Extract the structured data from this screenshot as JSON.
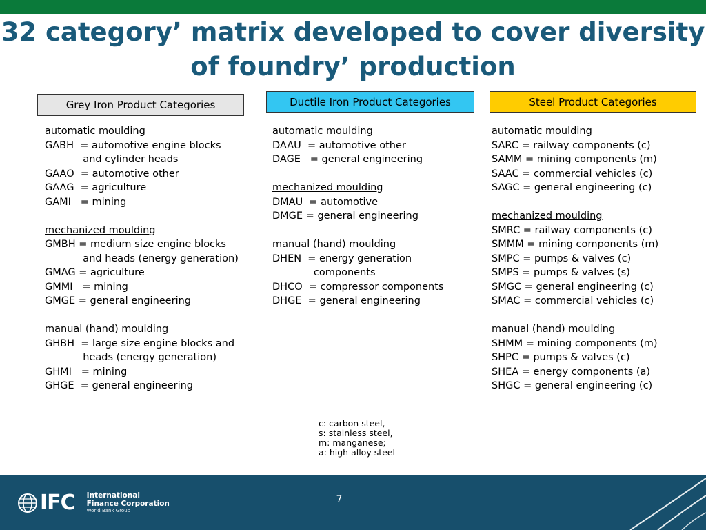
{
  "title_line1": "32 category’ matrix developed to cover diversity",
  "title_line2": "of foundry’ production",
  "categories": {
    "grey": {
      "label": "Grey Iron Product Categories",
      "sections": [
        {
          "heading": "automatic moulding",
          "lines": [
            "GABH  = automotive engine blocks",
            "            and cylinder heads",
            "GAAO  = automotive other",
            "GAAG  = agriculture",
            "GAMI   = mining"
          ]
        },
        {
          "heading": "mechanized moulding",
          "lines": [
            "GMBH = medium size engine blocks",
            "            and heads (energy generation)",
            "GMAG = agriculture",
            "GMMI   = mining",
            "GMGE = general engineering"
          ]
        },
        {
          "heading": "manual (hand) moulding",
          "lines": [
            "GHBH  = large size engine blocks and",
            "            heads (energy generation)",
            "GHMI   = mining",
            "GHGE  = general engineering"
          ]
        }
      ]
    },
    "ductile": {
      "label": "Ductile Iron Product Categories",
      "sections": [
        {
          "heading": "automatic moulding",
          "lines": [
            "DAAU  = automotive other",
            "DAGE   = general engineering"
          ]
        },
        {
          "heading": "mechanized moulding",
          "lines": [
            "DMAU  = automotive",
            "DMGE = general engineering"
          ]
        },
        {
          "heading": "manual (hand) moulding",
          "lines": [
            "DHEN  = energy generation",
            "             components",
            "DHCO  = compressor components",
            "DHGE  = general engineering"
          ]
        }
      ]
    },
    "steel": {
      "label": "Steel Product Categories",
      "sections": [
        {
          "heading": "automatic moulding",
          "lines": [
            "SARC = railway components (c)",
            "SAMM = mining components (m)",
            "SAAC = commercial vehicles (c)",
            "SAGC = general engineering (c)"
          ]
        },
        {
          "heading": "mechanized moulding",
          "lines": [
            "SMRC = railway components (c)",
            "SMMM = mining components (m)",
            "SMPC = pumps & valves (c)",
            "SMPS = pumps & valves (s)",
            "SMGC = general engineering (c)",
            "SMAC = commercial vehicles (c)"
          ]
        },
        {
          "heading": "manual (hand) moulding",
          "lines": [
            "SHMM = mining components (m)",
            "SHPC = pumps & valves (c)",
            "SHEA = energy components (a)",
            "SHGC = general engineering (c)"
          ]
        }
      ]
    }
  },
  "notes": [
    "c: carbon steel,",
    "s: stainless steel,",
    "m: manganese;",
    "a: high alloy steel"
  ],
  "footer": {
    "logo_text": "IFC",
    "logo_line1": "International",
    "logo_line2": "Finance Corporation",
    "logo_line3": "World Bank Group",
    "page_number": "7"
  },
  "colors": {
    "top_bar": "#0a7a3a",
    "title": "#1a5a7a",
    "grey_box": "#e6e6e6",
    "ductile_box": "#33c6f2",
    "steel_box": "#ffcc00",
    "footer": "#174f6c"
  }
}
